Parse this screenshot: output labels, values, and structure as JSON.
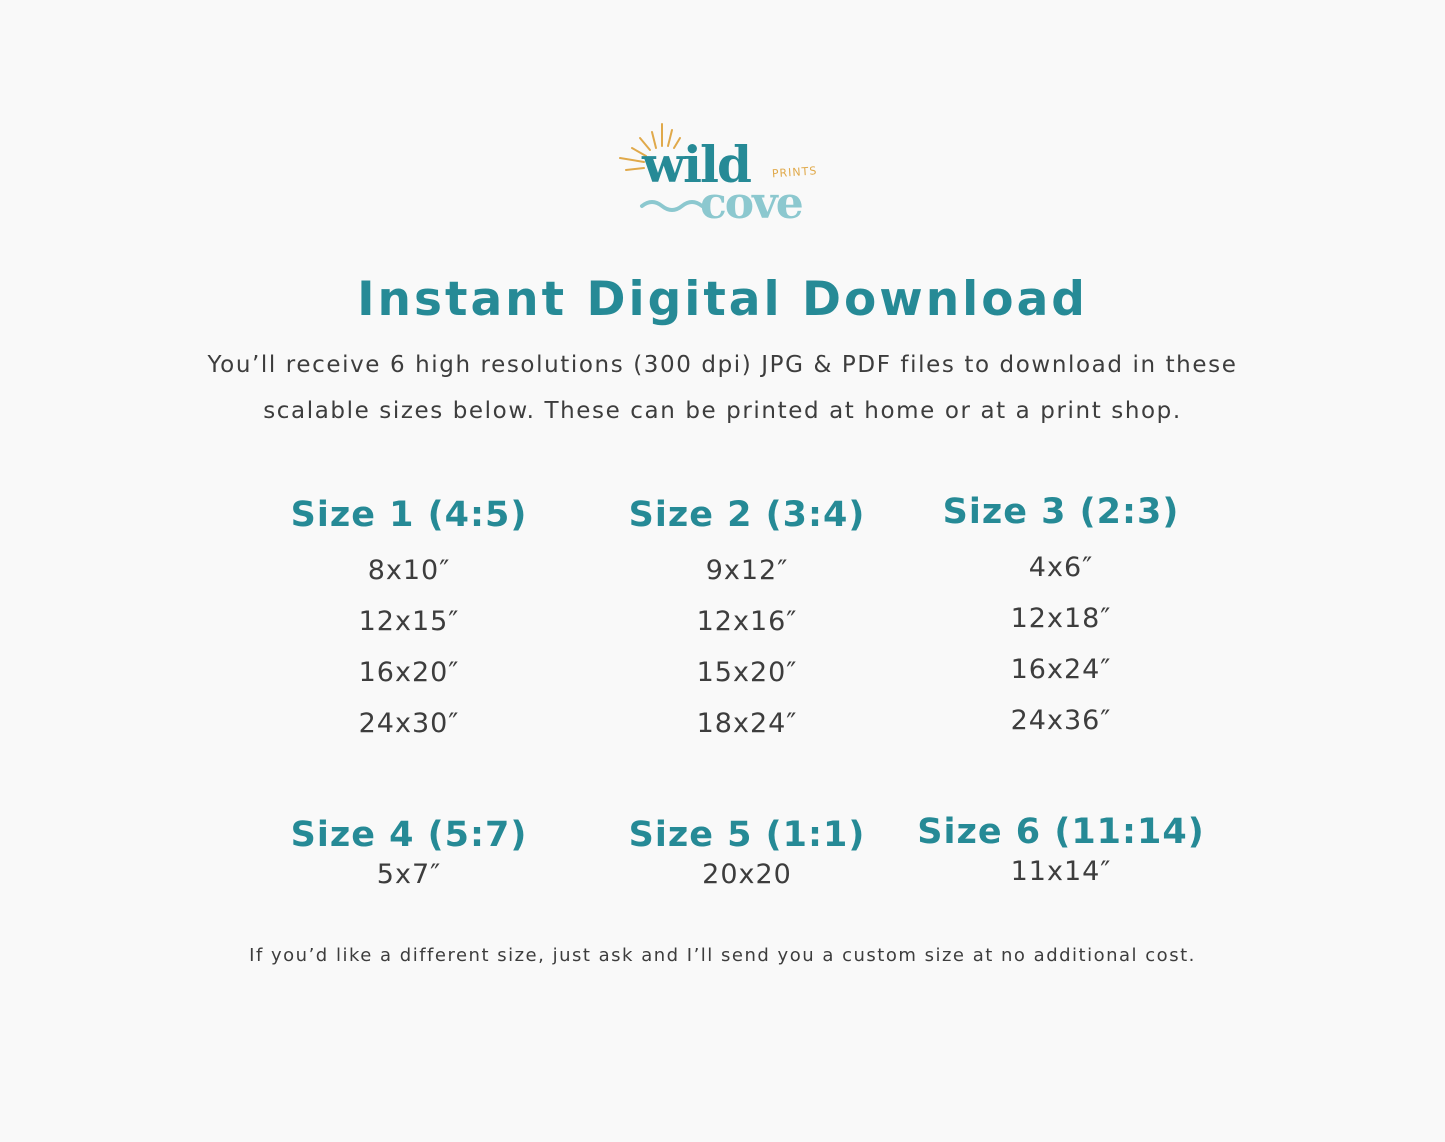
{
  "logo": {
    "text_line1": "wild",
    "text_line2": "cove",
    "text_small": "PRINTS",
    "colors": {
      "dark": "#268a96",
      "light": "#8cc8cf",
      "gold": "#e0a94a"
    }
  },
  "title": "Instant Digital Download",
  "intro": [
    "You’ll receive 6 high resolutions (300 dpi) JPG & PDF files to download in these",
    "scalable sizes below. These can be printed at home or at a print shop."
  ],
  "sizes": [
    {
      "heading": "Size 1 (4:5)",
      "items": [
        "8x10″",
        "12x15″",
        "16x20″",
        "24x30″"
      ]
    },
    {
      "heading": "Size 2 (3:4)",
      "items": [
        "9x12″",
        "12x16″",
        "15x20″",
        "18x24″"
      ]
    },
    {
      "heading": "Size 3 (2:3)",
      "items": [
        "4x6″",
        "12x18″",
        "16x24″",
        "24x36″"
      ]
    },
    {
      "heading": "Size 4 (5:7)",
      "items": [
        "5x7″"
      ]
    },
    {
      "heading": "Size 5 (1:1)",
      "items": [
        "20x20"
      ]
    },
    {
      "heading": "Size 6 (11:14)",
      "items": [
        "11x14″"
      ]
    }
  ],
  "footer": "If you’d like a different size, just ask and I’ll send you a custom size at no additional cost.",
  "colors": {
    "accent": "#268a96",
    "text": "#3d3d3d",
    "background": "#f9f9f9"
  }
}
